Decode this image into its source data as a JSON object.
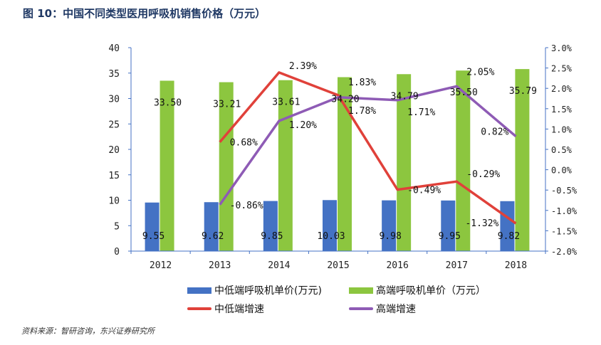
{
  "title": "图 10：中国不同类型医用呼吸机销售价格（万元）",
  "source": "资料来源：智研咨询，东兴证券研究所",
  "chart_data": {
    "type": "bar+line",
    "categories": [
      "2012",
      "2013",
      "2014",
      "2015",
      "2016",
      "2017",
      "2018"
    ],
    "left_axis": {
      "ylim": [
        0,
        40
      ],
      "ticks": [
        "0",
        "5",
        "10",
        "15",
        "20",
        "25",
        "30",
        "35",
        "40"
      ]
    },
    "right_axis": {
      "ylim": [
        -2.0,
        3.0
      ],
      "ticks": [
        "-2.0%",
        "-1.5%",
        "-1.0%",
        "-0.5%",
        "0.0%",
        "0.5%",
        "1.0%",
        "1.5%",
        "2.0%",
        "2.5%",
        "3.0%"
      ]
    },
    "bars": [
      {
        "name": "中低端呼吸机单价(万元)",
        "color": "#4472c4",
        "values": [
          9.55,
          9.62,
          9.85,
          10.03,
          9.98,
          9.95,
          9.82
        ],
        "labels": [
          "9.55",
          "9.62",
          "9.85",
          "10.03",
          "9.98",
          "9.95",
          "9.82"
        ]
      },
      {
        "name": "高端呼吸机单价（万元）",
        "color": "#8cc63f",
        "values": [
          33.5,
          33.21,
          33.61,
          34.2,
          34.79,
          35.5,
          35.79
        ],
        "labels": [
          "33.50",
          "33.21",
          "33.61",
          "34.20",
          "34.79",
          "35.50",
          "35.79"
        ]
      }
    ],
    "lines": [
      {
        "name": "中低端增速",
        "color": "#e0413a",
        "values": [
          null,
          0.68,
          2.39,
          1.83,
          -0.49,
          -0.29,
          -1.32
        ],
        "labels": [
          "",
          "0.68%",
          "2.39%",
          "1.83%",
          "-0.49%",
          "-0.29%",
          "-1.32%"
        ]
      },
      {
        "name": "高端增速",
        "color": "#8e5bb5",
        "values": [
          null,
          -0.86,
          1.2,
          1.78,
          1.71,
          2.05,
          0.82
        ],
        "labels": [
          "",
          "-0.86%",
          "1.20%",
          "1.78%",
          "1.71%",
          "2.05%",
          "0.82%"
        ]
      }
    ],
    "grid": false,
    "legend": "bottom"
  }
}
